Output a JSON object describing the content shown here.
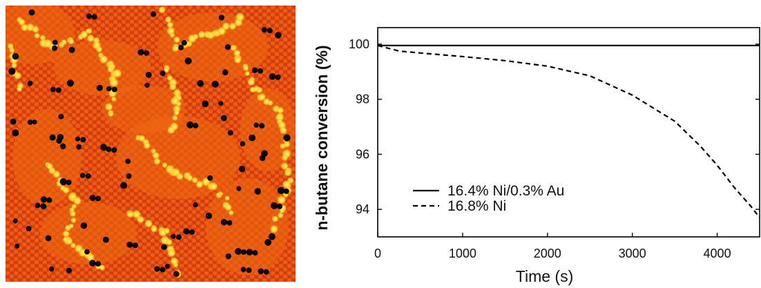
{
  "micrograph": {
    "palette": {
      "dark": "#000000",
      "background": "#d63a10",
      "mid": "#f06d10",
      "bright": "#ffe13a"
    }
  },
  "chart_data": {
    "type": "line",
    "title": "",
    "xlabel": "Time (s)",
    "ylabel": "n-butane conversion (%)",
    "xlim": [
      0,
      4500
    ],
    "ylim": [
      93,
      100.6
    ],
    "xticks": [
      0,
      1000,
      2000,
      3000,
      4000
    ],
    "yticks": [
      94,
      96,
      98,
      100
    ],
    "grid": false,
    "legend_position": "lower-left",
    "series": [
      {
        "name": "16.4% Ni/0.3% Au",
        "style": "solid",
        "color": "#000000",
        "x": [
          0,
          500,
          1000,
          1500,
          2000,
          2500,
          3000,
          3500,
          4000,
          4500
        ],
        "y": [
          99.95,
          99.95,
          99.95,
          99.95,
          99.95,
          99.95,
          99.95,
          99.95,
          99.95,
          99.95
        ]
      },
      {
        "name": "16.8% Ni",
        "style": "dashed",
        "color": "#000000",
        "x": [
          0,
          250,
          500,
          1000,
          1500,
          2000,
          2500,
          3000,
          3500,
          3800,
          4000,
          4200,
          4400,
          4500
        ],
        "y": [
          99.95,
          99.75,
          99.68,
          99.55,
          99.4,
          99.2,
          98.85,
          98.15,
          97.2,
          96.3,
          95.6,
          94.8,
          94.1,
          93.7
        ]
      }
    ]
  }
}
